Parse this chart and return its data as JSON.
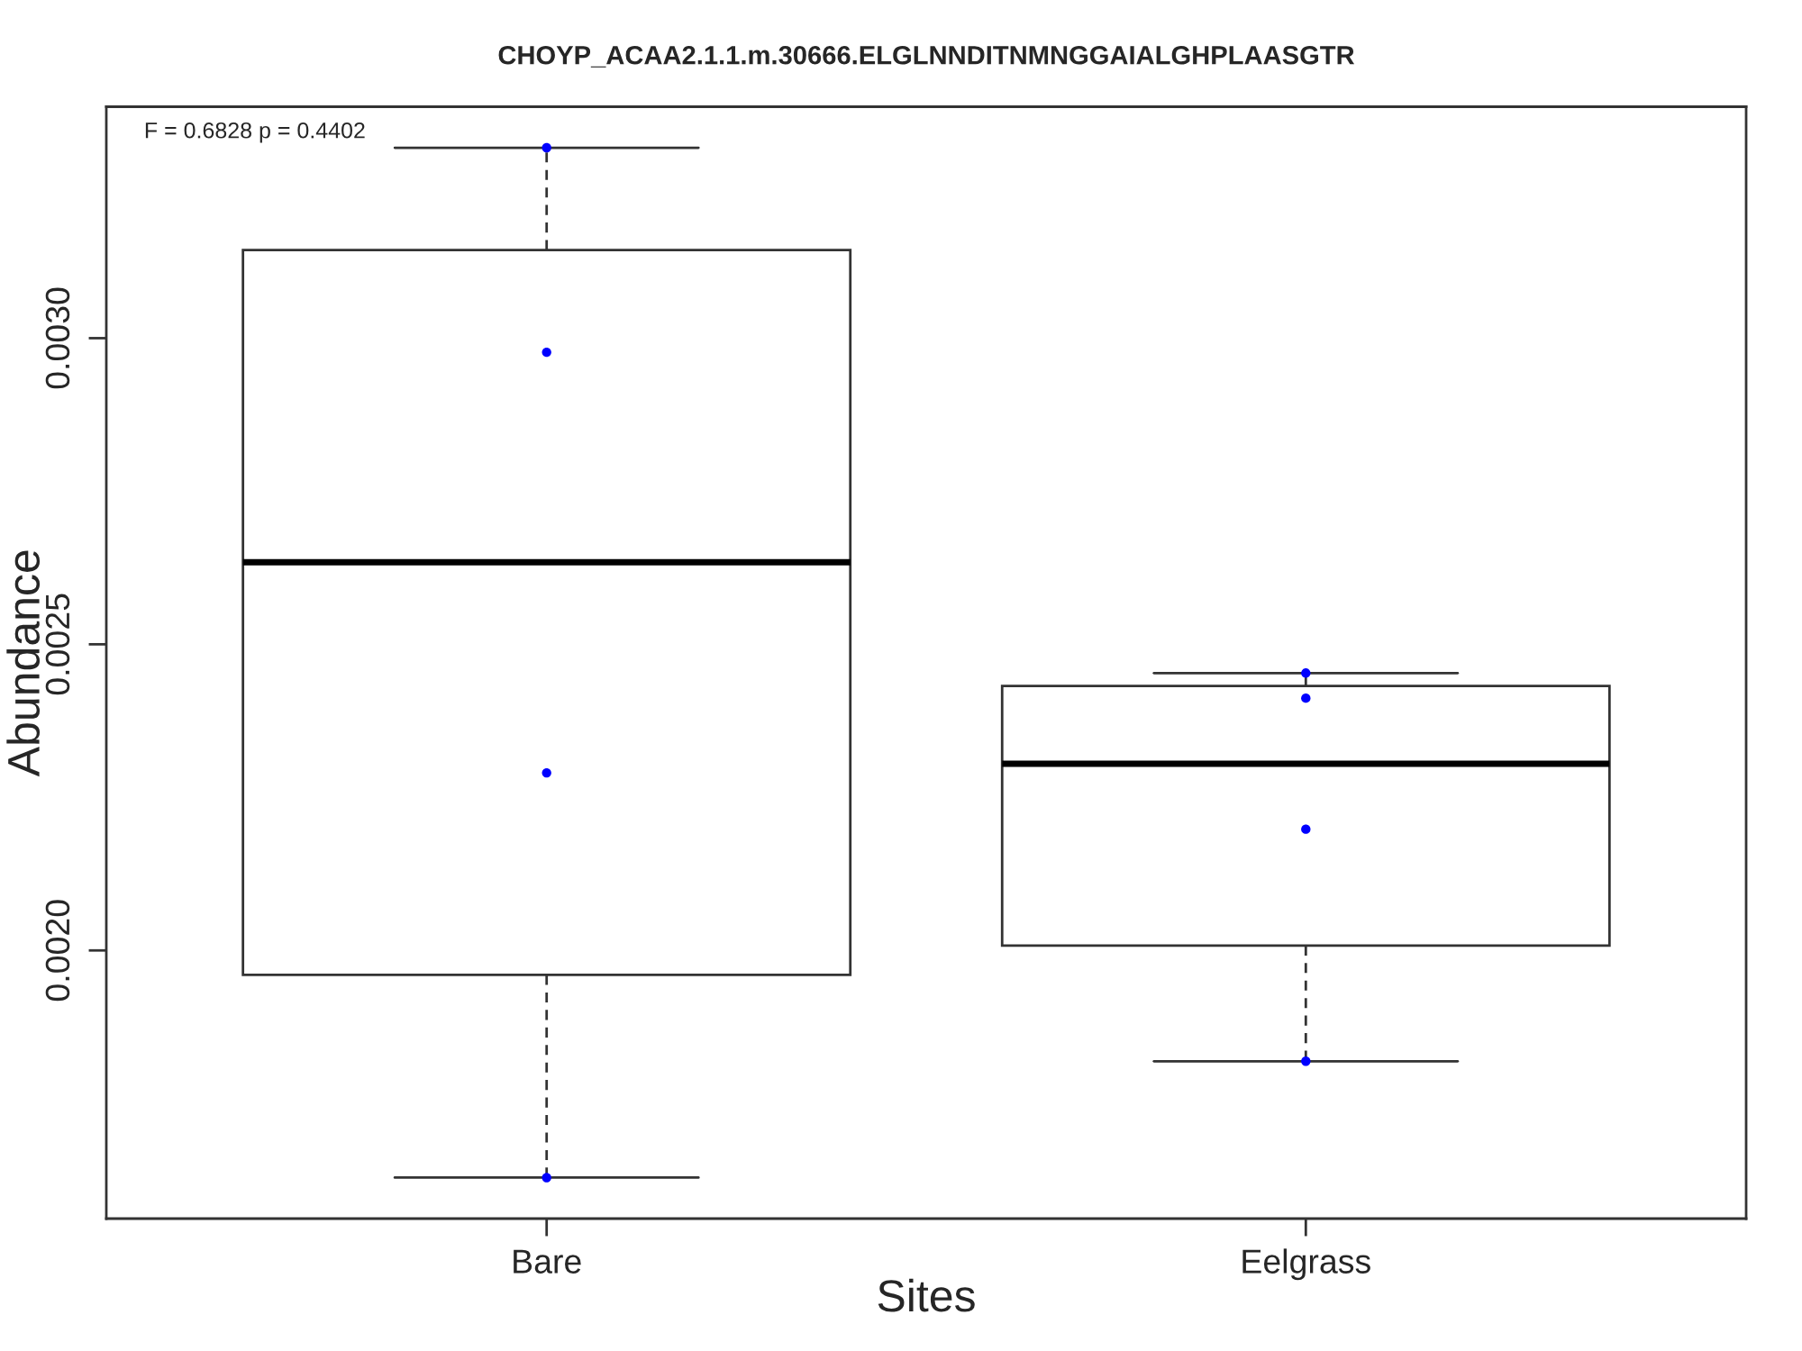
{
  "chart_data": {
    "type": "box",
    "title": "CHOYP_ACAA2.1.1.m.30666.ELGLNNDITNMNGGAIALGHPLAASGTR",
    "xlabel": "Sites",
    "ylabel": "Abundance",
    "categories": [
      "Bare",
      "Eelgrass"
    ],
    "boxes": [
      {
        "low": 0.001629,
        "q1": 0.00196,
        "median": 0.002634,
        "q3": 0.003144,
        "high": 0.003311
      },
      {
        "low": 0.001819,
        "q1": 0.002008,
        "median": 0.002305,
        "q3": 0.002432,
        "high": 0.002453
      }
    ],
    "series": [
      {
        "type": "scatter",
        "color": "#0000ff",
        "marker": "circle",
        "x": [
          "Bare",
          "Bare",
          "Bare",
          "Bare",
          "Eelgrass",
          "Eelgrass",
          "Eelgrass",
          "Eelgrass"
        ],
        "values": [
          0.003311,
          0.002977,
          0.00229,
          0.001629,
          0.002453,
          0.002412,
          0.002198,
          0.001819
        ]
      }
    ],
    "ylim": [
      0.001562,
      0.003378
    ],
    "yticks": [
      {
        "value": 0.002,
        "label": "0.0020"
      },
      {
        "value": 0.0025,
        "label": "0.0025"
      },
      {
        "value": 0.003,
        "label": "0.0030"
      }
    ],
    "annotations": [
      "F = 0.6828 p = 0.4402"
    ]
  }
}
